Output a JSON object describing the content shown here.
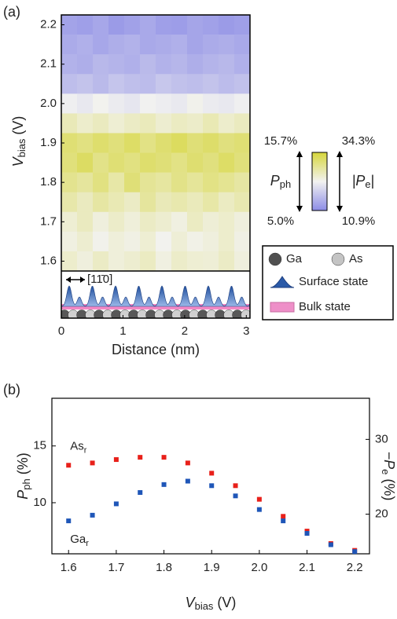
{
  "chart_data": [
    {
      "type": "heatmap",
      "panel_label": "(a)",
      "x_label": "Distance (nm)",
      "y_label": {
        "main": "V",
        "sub": "bias",
        "unit": " (V)"
      },
      "xlim": [
        0,
        3.06
      ],
      "ylim": [
        1.575,
        2.225
      ],
      "xticks": [
        0,
        1,
        2,
        3
      ],
      "yticks": [
        1.6,
        1.7,
        1.8,
        1.9,
        {
          "value": 2,
          "label": "2.0"
        },
        2.1,
        2.2
      ],
      "xbins": [
        0,
        0.255,
        0.51,
        0.765,
        1.02,
        1.275,
        1.53,
        1.785,
        2.04,
        2.295,
        2.55,
        2.805,
        3.06
      ],
      "ybins": [
        2.225,
        2.175,
        2.125,
        2.075,
        2.025,
        1.975,
        1.925,
        1.875,
        1.825,
        1.775,
        1.725,
        1.675,
        1.625,
        1.575
      ],
      "values": [
        [
          6.2,
          6.0,
          6.4,
          5.8,
          6.1,
          6.5,
          6.0,
          5.9,
          6.3,
          6.1,
          5.8,
          6.0
        ],
        [
          6.6,
          6.9,
          6.4,
          6.8,
          7.0,
          6.5,
          6.7,
          6.9,
          6.3,
          6.6,
          6.8,
          6.5
        ],
        [
          7.0,
          6.8,
          7.3,
          7.1,
          6.9,
          7.4,
          7.0,
          7.2,
          6.8,
          7.1,
          7.3,
          6.9
        ],
        [
          7.6,
          7.9,
          7.4,
          8.0,
          7.7,
          7.5,
          8.1,
          7.8,
          7.6,
          7.9,
          7.5,
          7.8
        ],
        [
          10.2,
          9.8,
          10.4,
          10.0,
          9.7,
          10.3,
          10.1,
          9.9,
          10.5,
          10.0,
          9.8,
          10.2
        ],
        [
          12.0,
          11.4,
          11.8,
          11.2,
          11.6,
          11.9,
          11.3,
          11.7,
          11.5,
          12.1,
          11.4,
          11.8
        ],
        [
          14.0,
          13.6,
          14.2,
          13.8,
          14.4,
          13.5,
          14.1,
          14.6,
          13.9,
          14.3,
          13.7,
          14.0
        ],
        [
          13.8,
          14.5,
          13.4,
          14.0,
          13.6,
          14.2,
          13.9,
          13.5,
          14.1,
          13.7,
          14.4,
          13.8
        ],
        [
          13.2,
          12.8,
          13.6,
          12.5,
          13.9,
          13.0,
          12.7,
          13.4,
          12.9,
          13.5,
          13.1,
          12.6
        ],
        [
          12.4,
          11.8,
          12.6,
          12.1,
          11.6,
          12.8,
          12.0,
          12.3,
          11.9,
          12.5,
          11.7,
          12.2
        ],
        [
          11.2,
          11.8,
          10.9,
          11.5,
          11.0,
          11.6,
          11.3,
          10.8,
          11.7,
          11.1,
          11.4,
          10.9
        ],
        [
          10.8,
          11.3,
          10.5,
          11.0,
          10.7,
          11.2,
          10.4,
          11.1,
          10.6,
          10.9,
          11.4,
          10.7
        ],
        [
          11.4,
          10.9,
          11.6,
          11.0,
          11.3,
          11.7,
          10.8,
          11.5,
          11.2,
          11.1,
          11.6,
          10.9
        ]
      ],
      "colormap": [
        "#8c8ce6",
        "#f2f2f0",
        "#d6d63a"
      ],
      "colorbar": {
        "left_label": {
          "main": "P",
          "sub": "ph"
        },
        "right_label": {
          "main": "|P",
          "sub": "e",
          "end": "|"
        },
        "left_ticks": [
          {
            "value": 15.7,
            "label": "15.7%"
          },
          {
            "value": 5.0,
            "label": "5.0%"
          }
        ],
        "right_ticks": [
          {
            "value": 34.3,
            "label": "34.3%"
          },
          {
            "value": 10.9,
            "label": "10.9%"
          }
        ]
      },
      "direction_label": "[11̄0]",
      "legend": [
        {
          "name": "Ga",
          "color": "#505050",
          "kind": "atom"
        },
        {
          "name": "As",
          "color": "#c4c4c4",
          "kind": "atom"
        },
        {
          "name": "Surface state",
          "color": "#2b5aa8",
          "kind": "peak"
        },
        {
          "name": "Bulk state",
          "color": "#e860b2",
          "kind": "band"
        }
      ]
    },
    {
      "type": "scatter",
      "panel_label": "(b)",
      "x_label": {
        "main": "V",
        "sub": "bias",
        "unit": " (V)"
      },
      "y_label": {
        "main": "P",
        "sub": "ph",
        "unit": " (%)"
      },
      "y2_label": {
        "main": "−P",
        "sub": "e",
        "unit": " (%)"
      },
      "x": [
        1.6,
        1.65,
        1.7,
        1.75,
        1.8,
        1.85,
        1.9,
        1.95,
        2.0,
        2.05,
        2.1,
        2.15,
        2.2
      ],
      "xlim": [
        1.565,
        2.231
      ],
      "ylim": [
        5.5,
        19.2
      ],
      "y2lim": [
        14.7,
        35.5
      ],
      "xticks": [
        1.6,
        1.7,
        1.8,
        1.9,
        {
          "value": 2,
          "label": "2.0"
        },
        2.1,
        2.2
      ],
      "yticks": [
        10,
        15
      ],
      "y2ticks": [
        20,
        30
      ],
      "series": [
        {
          "name": "As",
          "sub": "r",
          "color": "#e8201a",
          "values": [
            13.3,
            13.5,
            13.8,
            14.0,
            14.0,
            13.5,
            12.6,
            11.5,
            10.3,
            8.8,
            7.5,
            6.4,
            5.8
          ]
        },
        {
          "name": "Ga",
          "sub": "r",
          "color": "#1f56b8",
          "values": [
            8.4,
            8.9,
            9.9,
            10.9,
            11.6,
            11.9,
            11.5,
            10.6,
            9.4,
            8.4,
            7.3,
            6.3,
            5.7
          ]
        }
      ]
    }
  ]
}
